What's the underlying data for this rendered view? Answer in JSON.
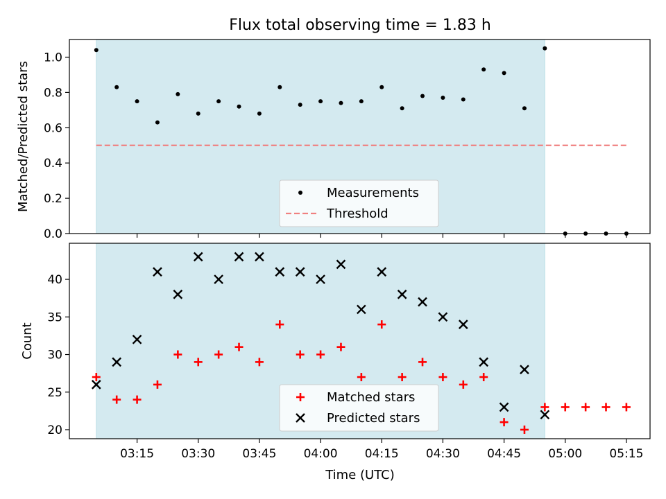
{
  "chart_data": {
    "title": "Flux total observing time = 1.83 h",
    "xlabel": "Time (UTC)",
    "x_ticks": [
      "03:15",
      "03:30",
      "03:45",
      "04:00",
      "04:15",
      "04:30",
      "04:45",
      "05:00",
      "05:15"
    ],
    "x_tick_minutes": [
      195,
      210,
      225,
      240,
      255,
      270,
      285,
      300,
      315
    ],
    "xlim_minutes": [
      178.4,
      320.8
    ],
    "observing_window_minutes": [
      185,
      295
    ],
    "colors": {
      "window": "#d4eaf0",
      "window_edge": "#bcdfe6",
      "measurements": "#000000",
      "threshold": "#f08080",
      "matched": "#ff0000",
      "predicted": "#000000"
    },
    "panels": [
      {
        "type": "scatter",
        "ylabel": "Matched/Predicted stars",
        "ylim": [
          0,
          1.1
        ],
        "y_ticks": [
          "0.0",
          "0.2",
          "0.4",
          "0.6",
          "0.8",
          "1.0"
        ],
        "y_tick_values": [
          0,
          0.2,
          0.4,
          0.6,
          0.8,
          1.0
        ],
        "legend_position": "bottom-center",
        "series": [
          {
            "name": "Measurements",
            "marker": "dot",
            "x": [
              185,
              190,
              195,
              200,
              205,
              210,
              215,
              220,
              225,
              230,
              235,
              240,
              245,
              250,
              255,
              260,
              265,
              270,
              275,
              280,
              285,
              290,
              295,
              300,
              305,
              310,
              315
            ],
            "y": [
              1.04,
              0.83,
              0.75,
              0.63,
              0.79,
              0.68,
              0.75,
              0.72,
              0.68,
              0.83,
              0.73,
              0.75,
              0.74,
              0.75,
              0.83,
              0.71,
              0.78,
              0.77,
              0.76,
              0.93,
              0.91,
              0.71,
              1.05,
              0.0,
              0.0,
              0.0,
              0.0
            ]
          },
          {
            "name": "Threshold",
            "marker": "dashed-line",
            "x": [
              185,
              315
            ],
            "y": [
              0.5,
              0.5
            ]
          }
        ]
      },
      {
        "type": "scatter",
        "ylabel": "Count",
        "ylim": [
          18.8,
          44.8
        ],
        "y_ticks": [
          "20",
          "25",
          "30",
          "35",
          "40"
        ],
        "y_tick_values": [
          20,
          25,
          30,
          35,
          40
        ],
        "legend_position": "bottom-center",
        "series": [
          {
            "name": "Matched stars",
            "marker": "plus",
            "x": [
              185,
              190,
              195,
              200,
              205,
              210,
              215,
              220,
              225,
              230,
              235,
              240,
              245,
              250,
              255,
              260,
              265,
              270,
              275,
              280,
              285,
              290,
              295,
              300,
              305,
              310,
              315
            ],
            "y": [
              27,
              24,
              24,
              26,
              30,
              29,
              30,
              31,
              29,
              34,
              30,
              30,
              31,
              27,
              34,
              27,
              29,
              27,
              26,
              27,
              21,
              20,
              23,
              23,
              23,
              23,
              23
            ]
          },
          {
            "name": "Predicted stars",
            "marker": "x",
            "x": [
              185,
              190,
              195,
              200,
              205,
              210,
              215,
              220,
              225,
              230,
              235,
              240,
              245,
              250,
              255,
              260,
              265,
              270,
              275,
              280,
              285,
              290,
              295
            ],
            "y": [
              26,
              29,
              32,
              41,
              38,
              43,
              40,
              43,
              43,
              41,
              41,
              40,
              42,
              36,
              41,
              38,
              37,
              35,
              34,
              29,
              23,
              28,
              22
            ]
          }
        ]
      }
    ]
  }
}
